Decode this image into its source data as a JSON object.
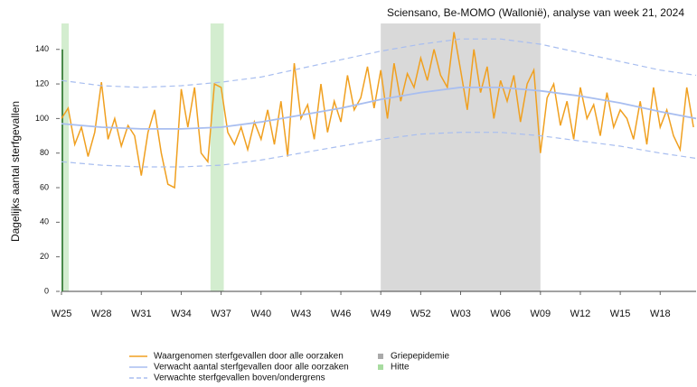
{
  "chart_data": {
    "type": "line",
    "title": "Sciensano, Be-MOMO (Wallonië), analyse van week 21, 2024",
    "y_label": "Dagelijks aantal sterfgevallen",
    "xlim": [
      0,
      47.7
    ],
    "ylim": [
      0,
      155
    ],
    "xticks": [
      {
        "value": 0,
        "label": "W25"
      },
      {
        "value": 3,
        "label": "W28"
      },
      {
        "value": 6,
        "label": "W31"
      },
      {
        "value": 9,
        "label": "W34"
      },
      {
        "value": 12,
        "label": "W37"
      },
      {
        "value": 15,
        "label": "W40"
      },
      {
        "value": 18,
        "label": "W43"
      },
      {
        "value": 21,
        "label": "W46"
      },
      {
        "value": 24,
        "label": "W49"
      },
      {
        "value": 27,
        "label": "W52"
      },
      {
        "value": 30,
        "label": "W03"
      },
      {
        "value": 33,
        "label": "W06"
      },
      {
        "value": 36,
        "label": "W09"
      },
      {
        "value": 39,
        "label": "W12"
      },
      {
        "value": 42,
        "label": "W15"
      },
      {
        "value": 45,
        "label": "W18"
      }
    ],
    "yticks": [
      0,
      20,
      40,
      60,
      80,
      100,
      120,
      140
    ],
    "spans": [
      {
        "name": "Griepepidemie",
        "color": "#d9d9d9",
        "ranges": [
          [
            24,
            36
          ]
        ]
      },
      {
        "name": "Hitte",
        "color": "#d3edcf",
        "ranges": [
          [
            0,
            0.55
          ],
          [
            11.2,
            12.2
          ]
        ]
      }
    ],
    "series": [
      {
        "name": "Waargenomen sterfgevallen door alle oorzaken",
        "color": "#f0a020",
        "x": [
          0,
          0.5,
          1,
          1.5,
          2,
          2.5,
          3,
          3.5,
          4,
          4.5,
          5,
          5.5,
          6,
          6.5,
          7,
          7.5,
          8,
          8.5,
          9,
          9.5,
          10,
          10.5,
          11,
          11.5,
          12,
          12.5,
          13,
          13.5,
          14,
          14.5,
          15,
          15.5,
          16,
          16.5,
          17,
          17.5,
          18,
          18.5,
          19,
          19.5,
          20,
          20.5,
          21,
          21.5,
          22,
          22.5,
          23,
          23.5,
          24,
          24.5,
          25,
          25.5,
          26,
          26.5,
          27,
          27.5,
          28,
          28.5,
          29,
          29.5,
          30,
          30.5,
          31,
          31.5,
          32,
          32.5,
          33,
          33.5,
          34,
          34.5,
          35,
          35.5,
          36,
          36.5,
          37,
          37.5,
          38,
          38.5,
          39,
          39.5,
          40,
          40.5,
          41,
          41.5,
          42,
          42.5,
          43,
          43.5,
          44,
          44.5,
          45,
          45.5,
          46,
          46.5,
          47,
          47.5
        ],
        "values": [
          100,
          106,
          85,
          95,
          78,
          92,
          121,
          88,
          100,
          84,
          96,
          90,
          67,
          92,
          105,
          80,
          62,
          60,
          117,
          95,
          118,
          80,
          75,
          120,
          118,
          92,
          85,
          95,
          82,
          98,
          88,
          105,
          85,
          110,
          78,
          132,
          100,
          108,
          88,
          120,
          92,
          110,
          98,
          125,
          105,
          112,
          130,
          106,
          128,
          100,
          132,
          110,
          126,
          118,
          135,
          122,
          140,
          125,
          118,
          150,
          128,
          105,
          140,
          115,
          130,
          100,
          122,
          110,
          125,
          98,
          120,
          128,
          80,
          112,
          120,
          96,
          110,
          88,
          118,
          100,
          108,
          90,
          115,
          95,
          105,
          100,
          88,
          110,
          85,
          118,
          95,
          105,
          90,
          82,
          118,
          95
        ]
      },
      {
        "name": "Verwacht aantal sterfgevallen door alle oorzaken",
        "color": "#a8bef0",
        "x": [
          0,
          3,
          6,
          9,
          12,
          15,
          18,
          21,
          24,
          27,
          30,
          33,
          36,
          39,
          42,
          45,
          47.7
        ],
        "values": [
          97,
          95,
          94,
          94,
          95,
          98,
          102,
          106,
          111,
          115,
          118,
          118,
          116,
          113,
          109,
          104,
          100
        ]
      },
      {
        "name": "Verwachte sterfgevallen boven/ondergrens",
        "color": "#a8bef0",
        "dashed": true,
        "x": [
          0,
          3,
          6,
          9,
          12,
          15,
          18,
          21,
          24,
          27,
          30,
          33,
          36,
          39,
          42,
          45,
          47.7
        ],
        "upper": [
          122,
          119,
          118,
          119,
          121,
          124,
          129,
          134,
          139,
          143,
          146,
          146,
          143,
          138,
          133,
          128,
          125
        ],
        "lower": [
          75,
          73,
          72,
          72,
          73,
          76,
          80,
          84,
          88,
          91,
          92,
          92,
          90,
          87,
          84,
          80,
          77
        ]
      }
    ]
  }
}
